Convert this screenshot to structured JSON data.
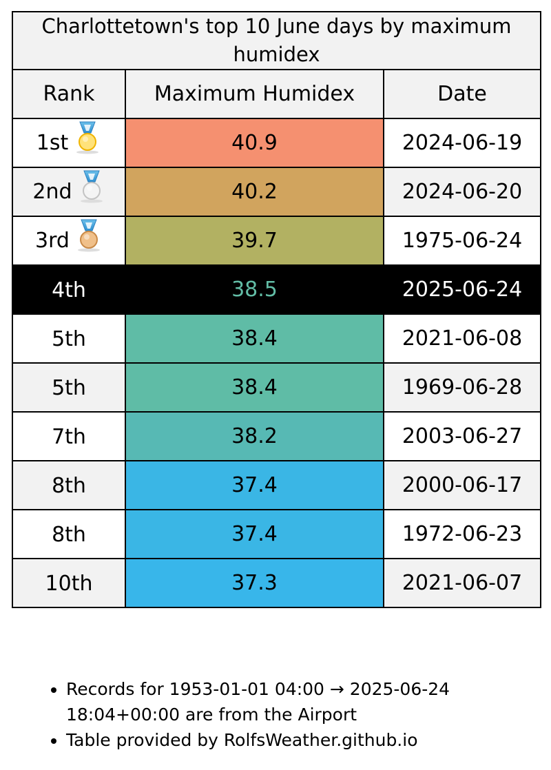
{
  "title": "Charlottetown's top 10 June days by maximum humidex",
  "headers": {
    "rank": "Rank",
    "value": "Maximum Humidex",
    "date": "Date"
  },
  "rows": [
    {
      "rank": "1st",
      "medal": "gold-medal-icon",
      "value": "40.9",
      "date": "2024-06-19",
      "color": "#f59070"
    },
    {
      "rank": "2nd",
      "medal": "silver-medal-icon",
      "value": "40.2",
      "date": "2024-06-20",
      "color": "#d1a45e"
    },
    {
      "rank": "3rd",
      "medal": "bronze-medal-icon",
      "value": "39.7",
      "date": "1975-06-24",
      "color": "#b2b162"
    },
    {
      "rank": "4th",
      "value": "38.5",
      "date": "2025-06-24",
      "color": "#000000",
      "text_color": "#62bda6"
    },
    {
      "rank": "5th",
      "value": "38.4",
      "date": "2021-06-08",
      "color": "#5fbca6"
    },
    {
      "rank": "5th",
      "value": "38.4",
      "date": "1969-06-28",
      "color": "#5fbca6"
    },
    {
      "rank": "7th",
      "value": "38.2",
      "date": "2003-06-27",
      "color": "#57b9b4"
    },
    {
      "rank": "8th",
      "value": "37.4",
      "date": "2000-06-17",
      "color": "#3ab6e5"
    },
    {
      "rank": "8th",
      "value": "37.4",
      "date": "1972-06-23",
      "color": "#3ab6e5"
    },
    {
      "rank": "10th",
      "value": "37.3",
      "date": "2021-06-07",
      "color": "#38b6ea"
    }
  ],
  "notes": [
    "Records for 1953-01-01 04:00 → 2025-06-24 18:04+00:00 are from the Airport",
    "Table provided by RolfsWeather.github.io"
  ]
}
